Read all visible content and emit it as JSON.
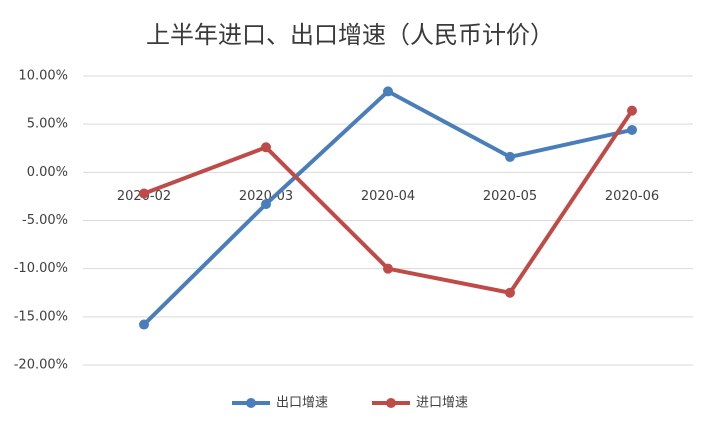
{
  "chart_data": {
    "type": "line",
    "title": "上半年进口、出口增速（人民币计价）",
    "categories": [
      "2020-02",
      "2020-03",
      "2020-04",
      "2020-05",
      "2020-06"
    ],
    "series": [
      {
        "name": "出口增速",
        "color": "#4a7ebb",
        "values": [
          -15.8,
          -3.3,
          8.4,
          1.6,
          4.4
        ]
      },
      {
        "name": "进口增速",
        "color": "#be4b48",
        "values": [
          -2.2,
          2.6,
          -10.0,
          -12.5,
          6.4
        ]
      }
    ],
    "ylim": [
      -20,
      10
    ],
    "yticks": [
      {
        "value": 10,
        "label": "10.00%"
      },
      {
        "value": 5,
        "label": "5.00%"
      },
      {
        "value": 0,
        "label": "0.00%"
      },
      {
        "value": -5,
        "label": "-5.00%"
      },
      {
        "value": -10,
        "label": "-10.00%"
      },
      {
        "value": -15,
        "label": "-15.00%"
      },
      {
        "value": -20,
        "label": "-20.00%"
      }
    ],
    "grid": true,
    "legend": "bottom"
  }
}
